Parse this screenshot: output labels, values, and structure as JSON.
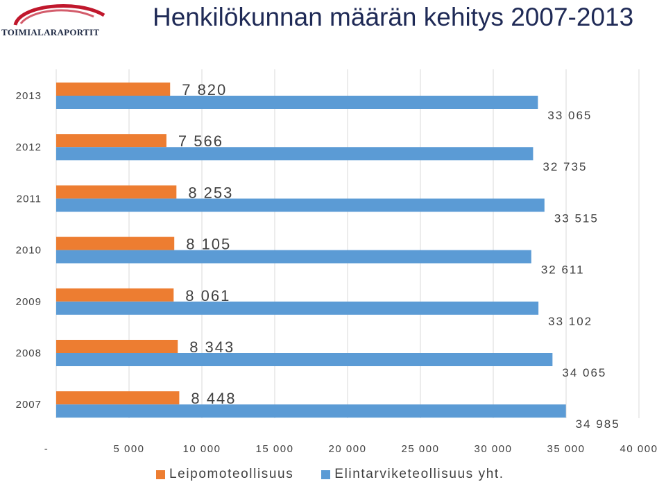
{
  "logo": {
    "text": "TOIMIALARAPORTIT"
  },
  "colors": {
    "series1": "#ed7d31",
    "series2": "#5b9bd5",
    "grid": "#d9d9d9",
    "logo_arc": "#c0172c"
  },
  "chart_data": {
    "type": "bar",
    "orientation": "horizontal",
    "title": "Henkilökunnan määrän kehitys 2007-2013",
    "categories": [
      "2013",
      "2012",
      "2011",
      "2010",
      "2009",
      "2008",
      "2007"
    ],
    "series": [
      {
        "name": "Leipomoteollisuus",
        "values": [
          7820,
          7566,
          8253,
          8105,
          8061,
          8343,
          8448
        ],
        "labels": [
          "7 820",
          "7 566",
          "8 253",
          "8 105",
          "8 061",
          "8 343",
          "8 448"
        ]
      },
      {
        "name": "Elintarviketeollisuus yht.",
        "values": [
          33065,
          32735,
          33515,
          32611,
          33102,
          34065,
          34985
        ],
        "labels": [
          "33 065",
          "32 735",
          "33 515",
          "32 611",
          "33 102",
          "34 065",
          "34 985"
        ]
      }
    ],
    "xlim": [
      0,
      40000
    ],
    "xticks": [
      0,
      5000,
      10000,
      15000,
      20000,
      25000,
      30000,
      35000,
      40000
    ],
    "xtick_labels": [
      "-",
      "5 000",
      "10 000",
      "15 000",
      "20 000",
      "25 000",
      "30 000",
      "35 000",
      "40 000"
    ],
    "grid": true,
    "legend_position": "bottom"
  }
}
